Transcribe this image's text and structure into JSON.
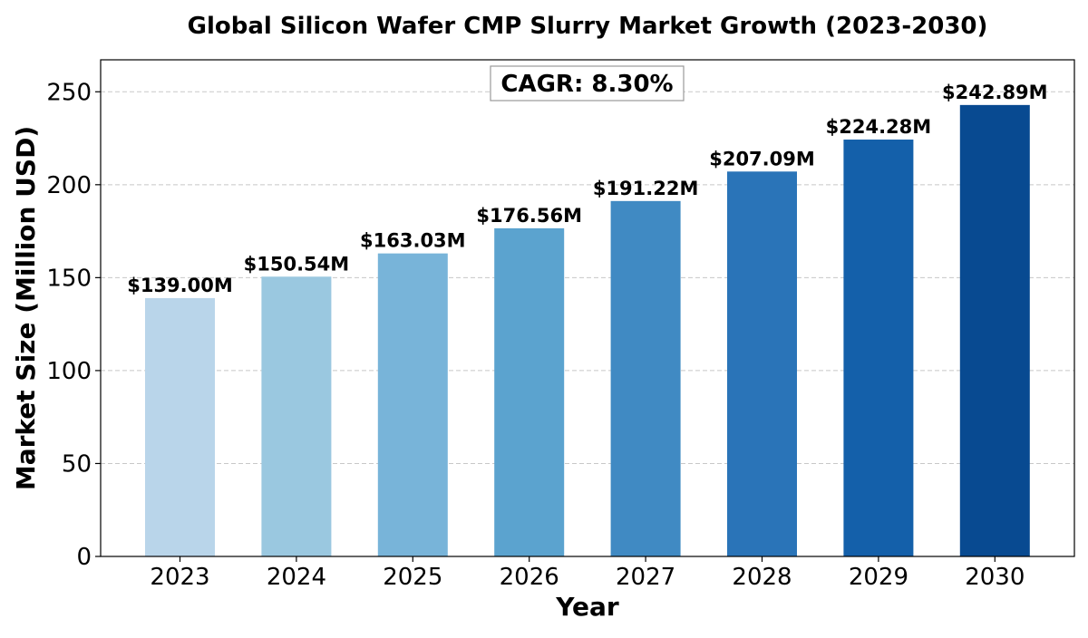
{
  "chart_data": {
    "type": "bar",
    "title": "Global Silicon Wafer CMP Slurry Market Growth (2023-2030)",
    "xlabel": "Year",
    "ylabel": "Market Size (Million USD)",
    "categories": [
      "2023",
      "2024",
      "2025",
      "2026",
      "2027",
      "2028",
      "2029",
      "2030"
    ],
    "values": [
      139.0,
      150.54,
      163.03,
      176.56,
      191.22,
      207.09,
      224.28,
      242.89
    ],
    "data_labels": [
      "$139.00M",
      "$150.54M",
      "$163.03M",
      "$176.56M",
      "$191.22M",
      "$207.09M",
      "$224.28M",
      "$242.89M"
    ],
    "bar_colors": [
      "#b9d5ea",
      "#9ac8e0",
      "#78b4d9",
      "#5ba3cf",
      "#408ac3",
      "#2a74b8",
      "#1460aa",
      "#084a91"
    ],
    "ylim": [
      0,
      267.2
    ],
    "yticks": [
      0,
      50,
      100,
      150,
      200,
      250
    ],
    "grid": "y-dashed",
    "annotation": "CAGR: 8.30%",
    "annotation_placement": "top-center"
  }
}
